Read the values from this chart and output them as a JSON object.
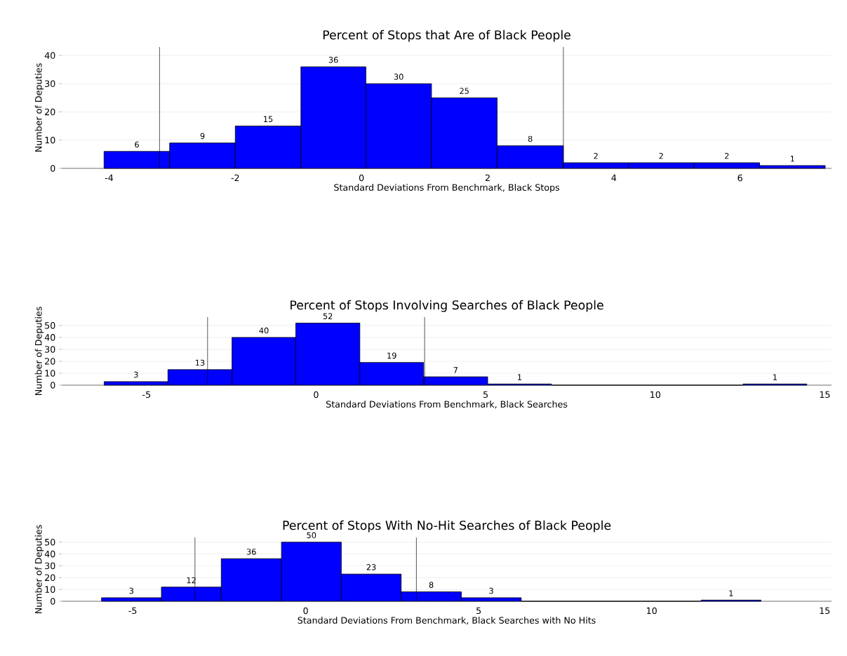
{
  "chart_data": [
    {
      "type": "histogram",
      "title": "Percent of Stops that Are of Black People",
      "xlabel": "Standard Deviations From Benchmark, Black Stops",
      "ylabel": "Number of Deputies",
      "bins": [
        -4.08,
        -3.04,
        -2.0,
        -0.96,
        0.07,
        1.11,
        2.15,
        3.2,
        4.23,
        5.27,
        6.31,
        7.35
      ],
      "values": [
        6,
        9,
        15,
        36,
        30,
        25,
        8,
        2,
        2,
        2,
        1
      ],
      "color": "#0000ff",
      "data_labels": true,
      "xlim": [
        -4.75,
        7.45
      ],
      "xticks": [
        -4,
        -2,
        0,
        2,
        4,
        6
      ],
      "ylim": [
        0,
        43
      ],
      "yticks": [
        0,
        10,
        20,
        30,
        40
      ],
      "grid": "y",
      "ref_lines": [
        {
          "axis": "x",
          "value": -3.2,
          "color": "#000000"
        },
        {
          "axis": "x",
          "value": 3.2,
          "color": "#000000"
        }
      ]
    },
    {
      "type": "histogram",
      "title": "Percent of Stops Involving Searches of Black People",
      "xlabel": "Standard Deviations From Benchmark, Black Searches",
      "ylabel": "Number of Deputies",
      "bins": [
        -6.25,
        -4.37,
        -2.48,
        -0.6,
        1.29,
        3.17,
        5.06,
        6.94,
        8.83,
        10.71,
        12.59,
        14.47
      ],
      "values": [
        3,
        13,
        40,
        52,
        19,
        7,
        1,
        0,
        0,
        0,
        1
      ],
      "color": "#0000ff",
      "value_labels": [
        "3",
        "13",
        "40",
        "52",
        "19",
        "7",
        "1",
        null,
        null,
        null,
        "1"
      ],
      "xlim": [
        -7.5,
        15.2
      ],
      "xticks": [
        -5,
        0,
        5,
        10,
        15
      ],
      "ylim": [
        0,
        57
      ],
      "yticks": [
        0,
        10,
        20,
        30,
        40,
        50
      ],
      "grid": "y",
      "ref_lines": [
        {
          "axis": "x",
          "value": -3.2,
          "color": "#000000"
        },
        {
          "axis": "x",
          "value": 3.2,
          "color": "#000000"
        }
      ]
    },
    {
      "type": "histogram",
      "title": "Percent of Stops With No-Hit Searches of Black People",
      "xlabel": "Standard Deviations From Benchmark, Black Searches with No Hits",
      "ylabel": "Number of Deputies",
      "bins": [
        -5.9,
        -4.17,
        -2.44,
        -0.7,
        1.03,
        2.76,
        4.5,
        6.23,
        7.96,
        9.69,
        11.43,
        13.16
      ],
      "values": [
        3,
        12,
        36,
        50,
        23,
        8,
        3,
        0,
        0,
        0,
        1
      ],
      "color": "#0000ff",
      "value_labels": [
        "3",
        "12",
        "36",
        "50",
        "23",
        "8",
        "3",
        null,
        null,
        null,
        "1"
      ],
      "xlim": [
        -7.05,
        15.2
      ],
      "xticks": [
        -5,
        0,
        5,
        10,
        15
      ],
      "ylim": [
        0,
        54
      ],
      "yticks": [
        0,
        10,
        20,
        30,
        40,
        50
      ],
      "grid": "y",
      "ref_lines": [
        {
          "axis": "x",
          "value": -3.2,
          "color": "#000000"
        },
        {
          "axis": "x",
          "value": 3.2,
          "color": "#000000"
        }
      ]
    }
  ]
}
